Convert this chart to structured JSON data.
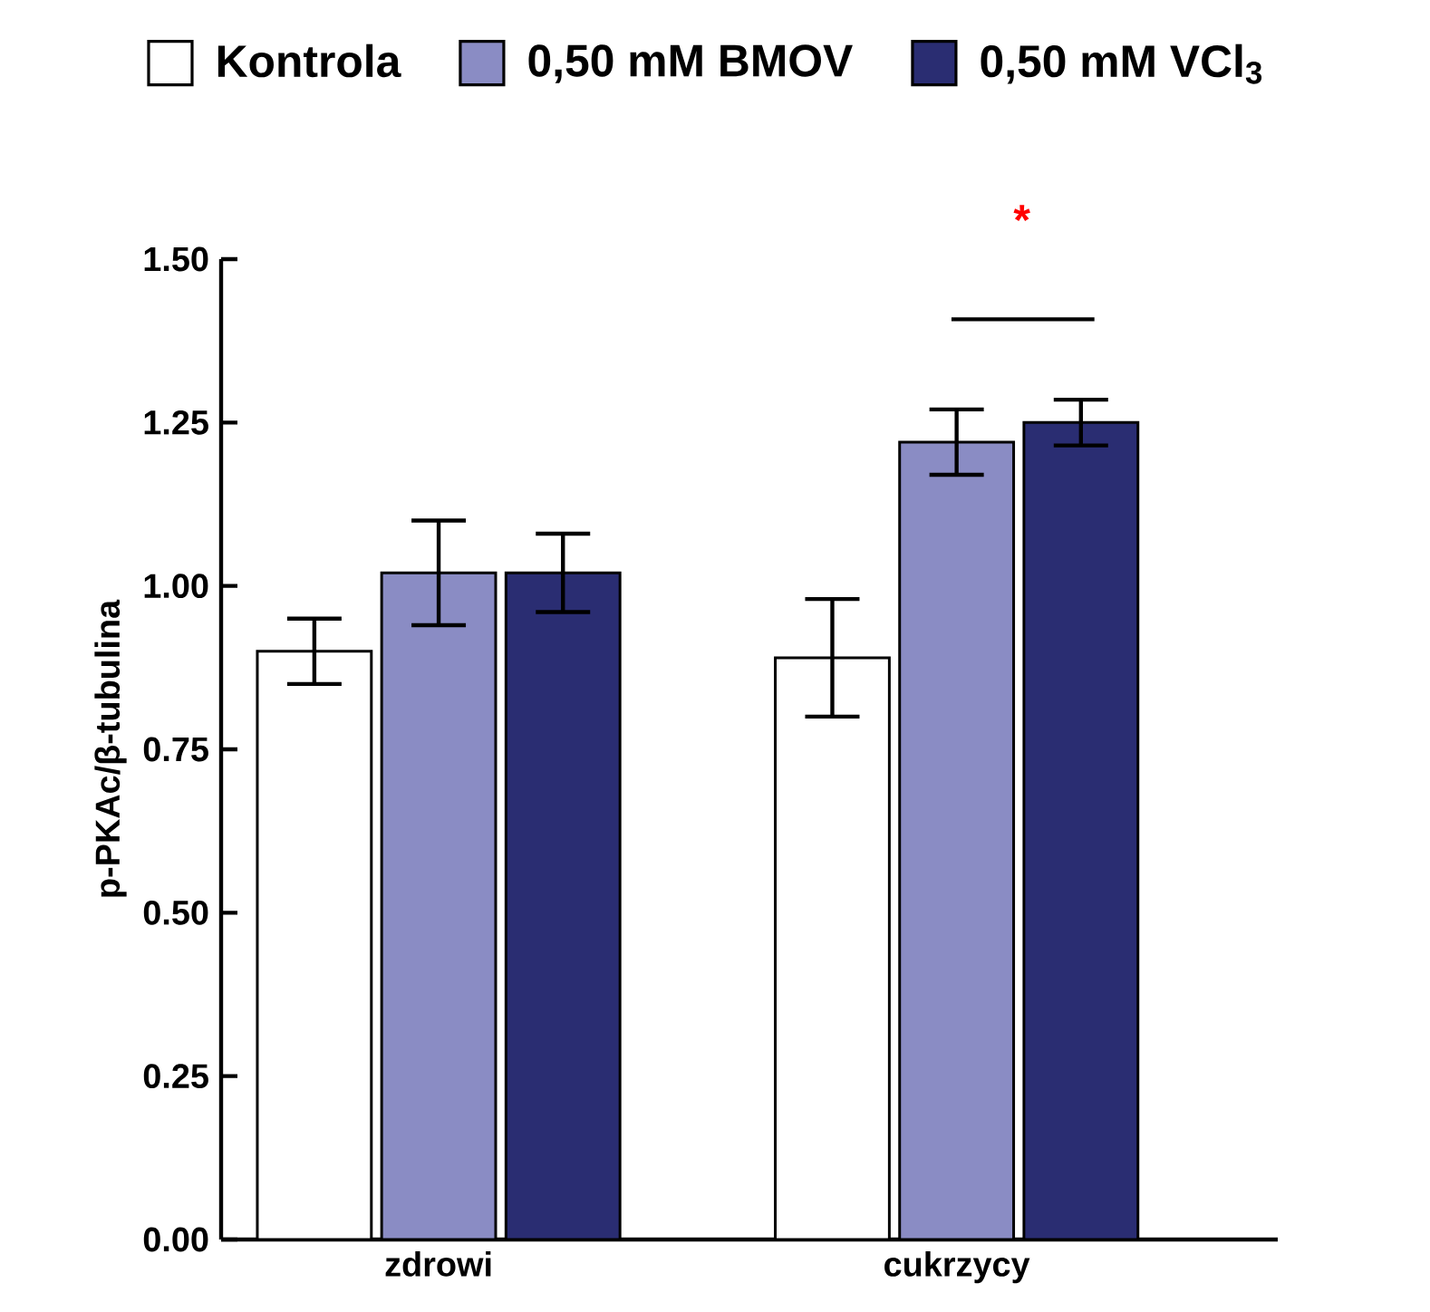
{
  "chart_data": {
    "type": "bar",
    "ylabel": "p-PKAc/β-tubulina",
    "categories": [
      "zdrowi",
      "cukrzycy"
    ],
    "series": [
      {
        "name": "Kontrola",
        "color": "#ffffff",
        "values": [
          0.9,
          0.89
        ],
        "errors": [
          0.05,
          0.09
        ]
      },
      {
        "name": "0,50 mM BMOV",
        "color": "#8a8cc4",
        "values": [
          1.02,
          1.22
        ],
        "errors": [
          0.08,
          0.05
        ]
      },
      {
        "name": "0,50 mM VCl$_{3}$",
        "color": "#2a2d72",
        "values": [
          1.02,
          1.25
        ],
        "errors": [
          0.06,
          0.035
        ]
      }
    ],
    "ylim": [
      0,
      1.5
    ],
    "yticks": [
      {
        "value": 0,
        "label": "0.00"
      },
      {
        "value": 0.25,
        "label": "0.25"
      },
      {
        "value": 0.5,
        "label": "0.50"
      },
      {
        "value": 0.75,
        "label": "0.75"
      },
      {
        "value": 1,
        "label": "1.00"
      },
      {
        "value": 1.25,
        "label": "1.25"
      },
      {
        "value": 1.5,
        "label": "1.50"
      }
    ],
    "annotations": [
      "*"
    ],
    "legend": "top",
    "grid": false
  }
}
